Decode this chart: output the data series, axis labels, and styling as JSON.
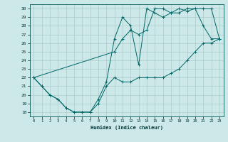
{
  "title": "",
  "xlabel": "Humidex (Indice chaleur)",
  "bg_color": "#cce8e8",
  "grid_color": "#aacccc",
  "line_color": "#006666",
  "xlim": [
    -0.5,
    23.5
  ],
  "ylim": [
    17.5,
    30.5
  ],
  "xticks": [
    0,
    1,
    2,
    3,
    4,
    5,
    6,
    7,
    8,
    9,
    10,
    11,
    12,
    13,
    14,
    15,
    16,
    17,
    18,
    19,
    20,
    21,
    22,
    23
  ],
  "yticks": [
    18,
    19,
    20,
    21,
    22,
    23,
    24,
    25,
    26,
    27,
    28,
    29,
    30
  ],
  "series1_x": [
    0,
    1,
    2,
    3,
    4,
    5,
    6,
    7,
    8,
    9,
    10,
    11,
    12,
    13,
    14,
    15,
    16,
    17,
    18,
    19,
    20,
    21,
    22,
    23
  ],
  "series1_y": [
    22,
    21,
    20,
    19.5,
    18.5,
    18,
    18,
    18,
    19,
    21,
    22,
    21.5,
    21.5,
    22,
    22,
    22,
    22,
    22.5,
    23,
    24,
    25,
    26,
    26,
    26.5
  ],
  "series2_x": [
    0,
    1,
    2,
    3,
    4,
    5,
    6,
    7,
    8,
    9,
    10,
    11,
    12,
    13,
    14,
    15,
    16,
    17,
    18,
    19,
    20,
    21,
    22,
    23
  ],
  "series2_y": [
    22,
    21,
    20,
    19.5,
    18.5,
    18,
    18,
    18,
    19.5,
    21.5,
    26.5,
    29,
    28,
    23.5,
    30,
    29.5,
    29,
    29.5,
    30,
    29.7,
    30,
    28,
    26.5,
    26.5
  ],
  "series3_x": [
    0,
    10,
    11,
    12,
    13,
    14,
    15,
    16,
    17,
    18,
    19,
    20,
    21,
    22,
    23
  ],
  "series3_y": [
    22,
    25,
    26.5,
    27.5,
    27,
    27.5,
    30,
    30,
    29.5,
    29.5,
    30,
    30,
    30,
    30,
    26.5
  ]
}
